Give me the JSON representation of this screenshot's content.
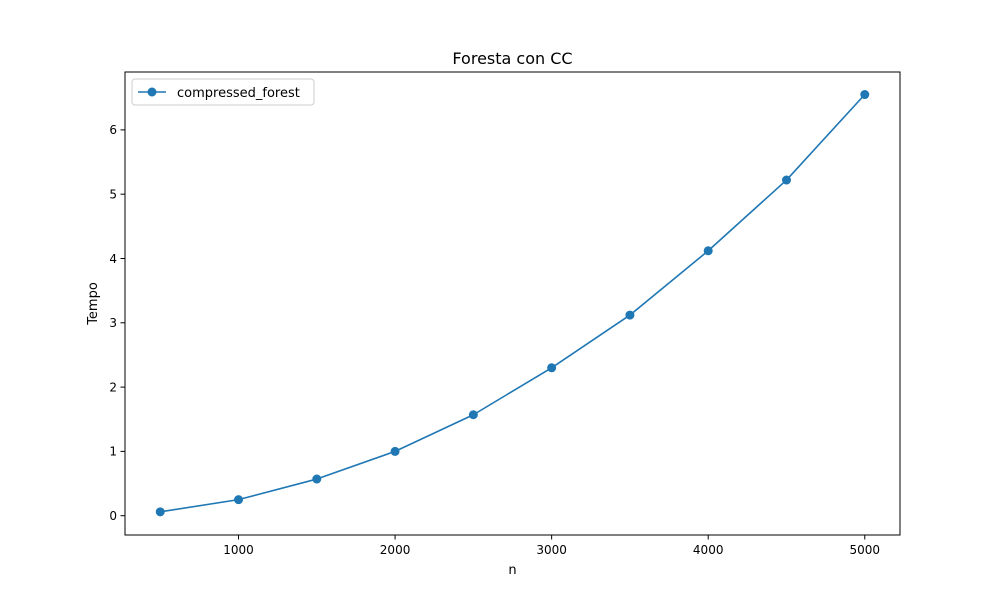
{
  "chart_data": {
    "type": "line",
    "title": "Foresta con CC",
    "xlabel": "n",
    "ylabel": "Tempo",
    "x": [
      500,
      1000,
      1500,
      2000,
      2500,
      3000,
      3500,
      4000,
      4500,
      5000
    ],
    "series": [
      {
        "name": "compressed_forest",
        "values": [
          0.06,
          0.25,
          0.57,
          1.0,
          1.57,
          2.3,
          3.12,
          4.12,
          5.22,
          6.55
        ],
        "color": "#1f77b4",
        "marker": "circle"
      }
    ],
    "xlim": [
      275,
      5225
    ],
    "ylim": [
      -0.3,
      6.9
    ],
    "xticks": [
      1000,
      2000,
      3000,
      4000,
      5000
    ],
    "xtick_labels": [
      "1000",
      "2000",
      "3000",
      "4000",
      "5000"
    ],
    "yticks": [
      0,
      1,
      2,
      3,
      4,
      5,
      6
    ],
    "ytick_labels": [
      "0",
      "1",
      "2",
      "3",
      "4",
      "5",
      "6"
    ],
    "grid": false,
    "legend_position": "upper-left"
  }
}
